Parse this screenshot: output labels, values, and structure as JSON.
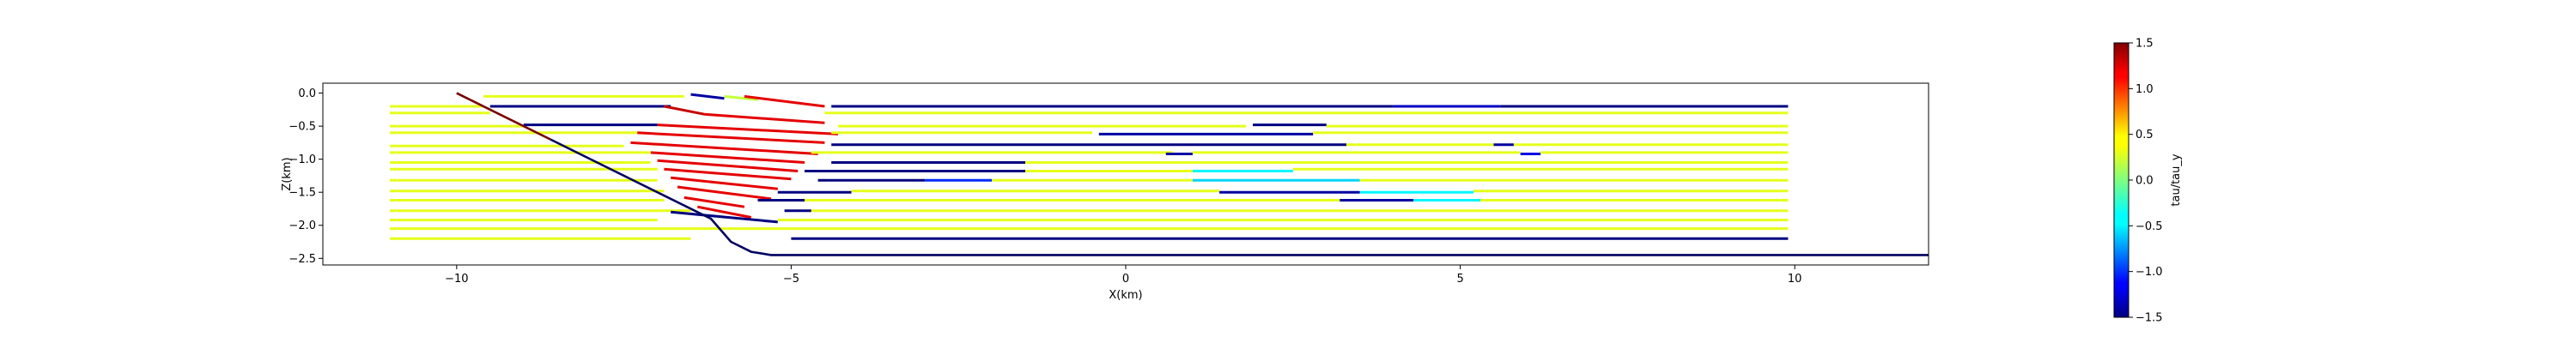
{
  "chart_data": {
    "type": "line",
    "title": "",
    "xlabel": "X(km)",
    "ylabel": "Z(km)",
    "xlim": [
      -12.0,
      12.0
    ],
    "ylim": [
      -2.6,
      0.15
    ],
    "x_ticks": [
      {
        "value": -10,
        "label": "−10"
      },
      {
        "value": -5,
        "label": "−5"
      },
      {
        "value": 0,
        "label": "0"
      },
      {
        "value": 5,
        "label": "5"
      },
      {
        "value": 10,
        "label": "10"
      }
    ],
    "y_ticks": [
      {
        "value": 0.0,
        "label": "0.0"
      },
      {
        "value": -0.5,
        "label": "−0.5"
      },
      {
        "value": -1.0,
        "label": "−1.0"
      },
      {
        "value": -1.5,
        "label": "−1.5"
      },
      {
        "value": -2.0,
        "label": "−2.0"
      },
      {
        "value": -2.5,
        "label": "−2.5"
      }
    ],
    "grid": false,
    "colorbar": {
      "label": "tau/tau_y",
      "range": [
        -1.5,
        1.5
      ],
      "ticks": [
        {
          "value": 1.5,
          "label": "1.5"
        },
        {
          "value": 1.0,
          "label": "1.0"
        },
        {
          "value": 0.5,
          "label": "0.5"
        },
        {
          "value": 0.0,
          "label": "0.0"
        },
        {
          "value": -0.5,
          "label": "−0.5"
        },
        {
          "value": -1.0,
          "label": "−1.0"
        },
        {
          "value": -1.5,
          "label": "−1.5"
        }
      ],
      "colormap": "jet"
    },
    "boundaries": [
      {
        "desc": "fault",
        "color": "#7a0000",
        "x": [
          -10.0,
          -8.6
        ],
        "z": [
          0.0,
          -0.7
        ]
      },
      {
        "desc": "base",
        "color": "#000060",
        "x": [
          -8.6,
          -6.2,
          -5.9,
          -5.6,
          -5.3,
          12.0
        ],
        "z": [
          -0.7,
          -1.9,
          -2.25,
          -2.4,
          -2.45,
          -2.45
        ]
      }
    ],
    "series": [
      {
        "z": -0.2,
        "segments": [
          {
            "x": [
              -9.6,
              -6.6
            ],
            "z": [
              -0.05,
              -0.05
            ],
            "tau": 0.3
          },
          {
            "x": [
              -6.5,
              -6.0
            ],
            "z": [
              -0.02,
              -0.08
            ],
            "tau": -1.4
          },
          {
            "x": [
              -6.0,
              -5.5
            ],
            "z": [
              -0.05,
              -0.1
            ],
            "tau": 0.2
          },
          {
            "x": [
              -5.7,
              -4.5
            ],
            "z": [
              -0.05,
              -0.2
            ],
            "tau": 1.2
          },
          {
            "x": [
              -4.4,
              4.0
            ],
            "z": [
              -0.2,
              -0.2
            ],
            "tau": -1.5
          },
          {
            "x": [
              4.0,
              5.6
            ],
            "z": [
              -0.2,
              -0.2
            ],
            "tau": -1.3
          },
          {
            "x": [
              5.6,
              9.9
            ],
            "z": [
              -0.2,
              -0.2
            ],
            "tau": -1.5
          },
          {
            "x": [
              -11.0,
              -9.6
            ],
            "z": [
              -0.2,
              -0.2
            ],
            "tau": 0.3
          }
        ]
      },
      {
        "z": -0.3,
        "segments": [
          {
            "x": [
              -11.0,
              -9.5
            ],
            "z": [
              -0.3,
              -0.3
            ],
            "tau": 0.3
          },
          {
            "x": [
              -9.5,
              -6.8
            ],
            "z": [
              -0.2,
              -0.2
            ],
            "tau": -1.5
          },
          {
            "x": [
              -6.9,
              -6.3
            ],
            "z": [
              -0.2,
              -0.32
            ],
            "tau": 1.3
          },
          {
            "x": [
              -6.3,
              -4.5
            ],
            "z": [
              -0.32,
              -0.45
            ],
            "tau": 1.2
          },
          {
            "x": [
              -4.5,
              9.9
            ],
            "z": [
              -0.3,
              -0.3
            ],
            "tau": 0.3
          }
        ]
      },
      {
        "z": -0.5,
        "segments": [
          {
            "x": [
              -11.0,
              -9.0
            ],
            "z": [
              -0.5,
              -0.5
            ],
            "tau": 0.3
          },
          {
            "x": [
              -9.0,
              -7.0
            ],
            "z": [
              -0.48,
              -0.48
            ],
            "tau": -1.5
          },
          {
            "x": [
              -7.0,
              -4.3
            ],
            "z": [
              -0.48,
              -0.62
            ],
            "tau": 1.2
          },
          {
            "x": [
              -4.3,
              1.8
            ],
            "z": [
              -0.5,
              -0.5
            ],
            "tau": 0.3
          },
          {
            "x": [
              1.9,
              3.0
            ],
            "z": [
              -0.48,
              -0.48
            ],
            "tau": -1.5
          },
          {
            "x": [
              3.0,
              9.9
            ],
            "z": [
              -0.5,
              -0.5
            ],
            "tau": 0.3
          }
        ]
      },
      {
        "z": -0.6,
        "segments": [
          {
            "x": [
              -11.0,
              -7.3
            ],
            "z": [
              -0.6,
              -0.6
            ],
            "tau": 0.3
          },
          {
            "x": [
              -7.3,
              -4.5
            ],
            "z": [
              -0.6,
              -0.75
            ],
            "tau": 1.2
          },
          {
            "x": [
              -4.4,
              -0.5
            ],
            "z": [
              -0.6,
              -0.6
            ],
            "tau": 0.3
          },
          {
            "x": [
              -0.4,
              2.8
            ],
            "z": [
              -0.62,
              -0.62
            ],
            "tau": -1.4
          },
          {
            "x": [
              2.8,
              9.9
            ],
            "z": [
              -0.6,
              -0.6
            ],
            "tau": 0.3
          }
        ]
      },
      {
        "z": -0.78,
        "segments": [
          {
            "x": [
              -11.0,
              -7.5
            ],
            "z": [
              -0.8,
              -0.8
            ],
            "tau": 0.3
          },
          {
            "x": [
              -7.4,
              -4.6
            ],
            "z": [
              -0.75,
              -0.92
            ],
            "tau": 1.2
          },
          {
            "x": [
              -4.4,
              3.3
            ],
            "z": [
              -0.78,
              -0.78
            ],
            "tau": -1.5
          },
          {
            "x": [
              3.3,
              5.5
            ],
            "z": [
              -0.78,
              -0.78
            ],
            "tau": 0.3
          },
          {
            "x": [
              5.5,
              5.8
            ],
            "z": [
              -0.78,
              -0.78
            ],
            "tau": -1.4
          },
          {
            "x": [
              5.8,
              9.9
            ],
            "z": [
              -0.78,
              -0.78
            ],
            "tau": 0.3
          }
        ]
      },
      {
        "z": -0.9,
        "segments": [
          {
            "x": [
              -11.0,
              -7.1
            ],
            "z": [
              -0.9,
              -0.9
            ],
            "tau": 0.3
          },
          {
            "x": [
              -7.1,
              -4.8
            ],
            "z": [
              -0.9,
              -1.05
            ],
            "tau": 1.2
          },
          {
            "x": [
              -4.7,
              0.7
            ],
            "z": [
              -0.9,
              -0.9
            ],
            "tau": 0.3
          },
          {
            "x": [
              0.6,
              1.0
            ],
            "z": [
              -0.92,
              -0.92
            ],
            "tau": -1.4
          },
          {
            "x": [
              1.0,
              5.9
            ],
            "z": [
              -0.9,
              -0.9
            ],
            "tau": 0.3
          },
          {
            "x": [
              5.9,
              6.2
            ],
            "z": [
              -0.92,
              -0.92
            ],
            "tau": -1.2
          },
          {
            "x": [
              6.2,
              9.9
            ],
            "z": [
              -0.9,
              -0.9
            ],
            "tau": 0.3
          }
        ]
      },
      {
        "z": -1.05,
        "segments": [
          {
            "x": [
              -11.0,
              -7.1
            ],
            "z": [
              -1.05,
              -1.05
            ],
            "tau": 0.3
          },
          {
            "x": [
              -7.0,
              -4.9
            ],
            "z": [
              -1.02,
              -1.18
            ],
            "tau": 1.2
          },
          {
            "x": [
              -4.4,
              -1.5
            ],
            "z": [
              -1.05,
              -1.05
            ],
            "tau": -1.5
          },
          {
            "x": [
              -1.5,
              9.9
            ],
            "z": [
              -1.05,
              -1.05
            ],
            "tau": 0.3
          }
        ]
      },
      {
        "z": -1.15,
        "segments": [
          {
            "x": [
              -11.0,
              -7.0
            ],
            "z": [
              -1.15,
              -1.15
            ],
            "tau": 0.3
          },
          {
            "x": [
              -6.9,
              -5.0
            ],
            "z": [
              -1.15,
              -1.3
            ],
            "tau": 1.2
          },
          {
            "x": [
              -4.8,
              -1.5
            ],
            "z": [
              -1.18,
              -1.18
            ],
            "tau": -1.5
          },
          {
            "x": [
              -1.5,
              1.0
            ],
            "z": [
              -1.18,
              -1.18
            ],
            "tau": 0.3
          },
          {
            "x": [
              1.0,
              2.5
            ],
            "z": [
              -1.18,
              -1.18
            ],
            "tau": -0.4
          },
          {
            "x": [
              2.5,
              9.9
            ],
            "z": [
              -1.15,
              -1.15
            ],
            "tau": 0.3
          }
        ]
      },
      {
        "z": -1.32,
        "segments": [
          {
            "x": [
              -11.0,
              -7.0
            ],
            "z": [
              -1.32,
              -1.32
            ],
            "tau": 0.3
          },
          {
            "x": [
              -6.8,
              -5.2
            ],
            "z": [
              -1.28,
              -1.45
            ],
            "tau": 1.2
          },
          {
            "x": [
              -4.6,
              -3.0
            ],
            "z": [
              -1.32,
              -1.32
            ],
            "tau": -1.5
          },
          {
            "x": [
              -3.0,
              -2.0
            ],
            "z": [
              -1.32,
              -1.32
            ],
            "tau": -1.0
          },
          {
            "x": [
              -2.0,
              1.0
            ],
            "z": [
              -1.32,
              -1.32
            ],
            "tau": 0.3
          },
          {
            "x": [
              1.0,
              3.5
            ],
            "z": [
              -1.32,
              -1.32
            ],
            "tau": -0.5
          },
          {
            "x": [
              3.5,
              9.9
            ],
            "z": [
              -1.32,
              -1.32
            ],
            "tau": 0.3
          }
        ]
      },
      {
        "z": -1.48,
        "segments": [
          {
            "x": [
              -11.0,
              -6.9
            ],
            "z": [
              -1.48,
              -1.48
            ],
            "tau": 0.3
          },
          {
            "x": [
              -6.7,
              -5.3
            ],
            "z": [
              -1.42,
              -1.6
            ],
            "tau": 1.2
          },
          {
            "x": [
              -5.2,
              -4.1
            ],
            "z": [
              -1.5,
              -1.5
            ],
            "tau": -1.5
          },
          {
            "x": [
              -4.1,
              1.4
            ],
            "z": [
              -1.48,
              -1.48
            ],
            "tau": 0.3
          },
          {
            "x": [
              1.4,
              3.5
            ],
            "z": [
              -1.5,
              -1.5
            ],
            "tau": -1.4
          },
          {
            "x": [
              3.5,
              5.2
            ],
            "z": [
              -1.5,
              -1.5
            ],
            "tau": -0.4
          },
          {
            "x": [
              5.2,
              9.9
            ],
            "z": [
              -1.48,
              -1.48
            ],
            "tau": 0.3
          }
        ]
      },
      {
        "z": -1.62,
        "segments": [
          {
            "x": [
              -11.0,
              -6.9
            ],
            "z": [
              -1.62,
              -1.62
            ],
            "tau": 0.3
          },
          {
            "x": [
              -6.6,
              -5.7
            ],
            "z": [
              -1.58,
              -1.72
            ],
            "tau": 1.2
          },
          {
            "x": [
              -5.5,
              -4.8
            ],
            "z": [
              -1.62,
              -1.62
            ],
            "tau": -1.5
          },
          {
            "x": [
              -4.8,
              3.2
            ],
            "z": [
              -1.62,
              -1.62
            ],
            "tau": 0.3
          },
          {
            "x": [
              3.2,
              4.3
            ],
            "z": [
              -1.62,
              -1.62
            ],
            "tau": -1.4
          },
          {
            "x": [
              4.3,
              5.3
            ],
            "z": [
              -1.62,
              -1.62
            ],
            "tau": -0.4
          },
          {
            "x": [
              5.3,
              9.9
            ],
            "z": [
              -1.62,
              -1.62
            ],
            "tau": 0.3
          }
        ]
      },
      {
        "z": -1.78,
        "segments": [
          {
            "x": [
              -11.0,
              -6.5
            ],
            "z": [
              -1.78,
              -1.78
            ],
            "tau": 0.3
          },
          {
            "x": [
              -6.4,
              -5.6
            ],
            "z": [
              -1.72,
              -1.88
            ],
            "tau": 1.2
          },
          {
            "x": [
              -5.1,
              -4.7
            ],
            "z": [
              -1.78,
              -1.78
            ],
            "tau": -1.5
          },
          {
            "x": [
              -4.7,
              9.9
            ],
            "z": [
              -1.78,
              -1.78
            ],
            "tau": 0.3
          }
        ]
      },
      {
        "z": -1.92,
        "segments": [
          {
            "x": [
              -11.0,
              -7.0
            ],
            "z": [
              -1.92,
              -1.92
            ],
            "tau": 0.3
          },
          {
            "x": [
              -6.8,
              -5.2
            ],
            "z": [
              -1.8,
              -1.95
            ],
            "tau": -1.5
          },
          {
            "x": [
              -5.2,
              9.9
            ],
            "z": [
              -1.92,
              -1.92
            ],
            "tau": 0.3
          }
        ]
      },
      {
        "z": -2.05,
        "segments": [
          {
            "x": [
              -11.0,
              9.9
            ],
            "z": [
              -2.05,
              -2.05
            ],
            "tau": 0.3
          }
        ]
      },
      {
        "z": -2.2,
        "segments": [
          {
            "x": [
              -11.0,
              -6.5
            ],
            "z": [
              -2.2,
              -2.2
            ],
            "tau": 0.3
          },
          {
            "x": [
              -5.0,
              9.9
            ],
            "z": [
              -2.2,
              -2.2
            ],
            "tau": -1.5
          }
        ]
      }
    ]
  }
}
